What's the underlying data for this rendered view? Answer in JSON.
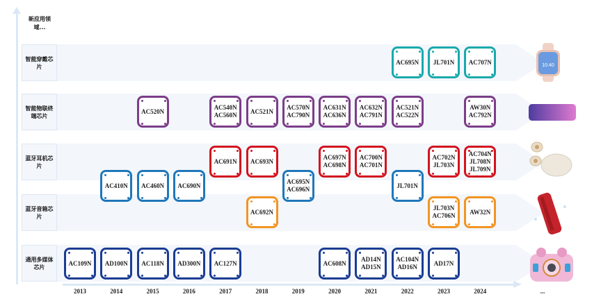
{
  "new_field_label": "新应用领域...",
  "rows": [
    {
      "id": "wearable",
      "label": "智能穿戴芯片"
    },
    {
      "id": "iot",
      "label": "智能物联终端芯片"
    },
    {
      "id": "earphone",
      "label": "蓝牙耳机芯片"
    },
    {
      "id": "speaker",
      "label": "蓝牙音箱芯片"
    },
    {
      "id": "multimedia",
      "label": "通用多媒体芯片"
    }
  ],
  "years": [
    "2013",
    "2014",
    "2015",
    "2016",
    "2017",
    "2018",
    "2019",
    "2020",
    "2021",
    "2022",
    "2023",
    "2024"
  ],
  "years_more": "...",
  "colors": {
    "wearable": "#19a9ad",
    "iot": "#7b3d88",
    "earphone": "#d4121e",
    "both": "#1f77ba",
    "speaker": "#f29422",
    "multimedia": "#1b3c93"
  },
  "chips": [
    {
      "row": "wearable",
      "year": "2022",
      "lines": [
        "AC695N"
      ]
    },
    {
      "row": "wearable",
      "year": "2023",
      "lines": [
        "JL701N"
      ]
    },
    {
      "row": "wearable",
      "year": "2024",
      "lines": [
        "AC707N"
      ]
    },
    {
      "row": "iot",
      "year": "2015",
      "lines": [
        "AC520N"
      ]
    },
    {
      "row": "iot",
      "year": "2017",
      "lines": [
        "AC540N",
        "AC560N"
      ]
    },
    {
      "row": "iot",
      "year": "2018",
      "lines": [
        "AC521N"
      ]
    },
    {
      "row": "iot",
      "year": "2019",
      "lines": [
        "AC570N",
        "AC790N"
      ]
    },
    {
      "row": "iot",
      "year": "2020",
      "lines": [
        "AC631N",
        "AC636N"
      ]
    },
    {
      "row": "iot",
      "year": "2021",
      "lines": [
        "AC632N",
        "AC791N"
      ]
    },
    {
      "row": "iot",
      "year": "2022",
      "lines": [
        "AC521N",
        "AC522N"
      ]
    },
    {
      "row": "iot",
      "year": "2024",
      "lines": [
        "AW30N",
        "AC792N"
      ]
    },
    {
      "row": "earphone",
      "year": "2017",
      "lines": [
        "AC691N"
      ]
    },
    {
      "row": "earphone",
      "year": "2018",
      "lines": [
        "AC693N"
      ]
    },
    {
      "row": "earphone",
      "year": "2020",
      "lines": [
        "AC697N",
        "AC698N"
      ]
    },
    {
      "row": "earphone",
      "year": "2021",
      "lines": [
        "AC700N",
        "AC701N"
      ]
    },
    {
      "row": "earphone",
      "year": "2023",
      "lines": [
        "AC702N",
        "JL703N"
      ]
    },
    {
      "row": "earphone",
      "year": "2024",
      "lines": [
        "AC704N",
        "JL708N",
        "JL709N"
      ]
    },
    {
      "row": "both",
      "year": "2014",
      "lines": [
        "AC410N"
      ]
    },
    {
      "row": "both",
      "year": "2015",
      "lines": [
        "AC460N"
      ]
    },
    {
      "row": "both",
      "year": "2016",
      "lines": [
        "AC690N"
      ]
    },
    {
      "row": "both",
      "year": "2019",
      "lines": [
        "AC695N",
        "AC696N"
      ]
    },
    {
      "row": "both",
      "year": "2022",
      "lines": [
        "JL701N"
      ]
    },
    {
      "row": "speaker",
      "year": "2018",
      "lines": [
        "AC692N"
      ]
    },
    {
      "row": "speaker",
      "year": "2023",
      "lines": [
        "JL703N",
        "AC706N"
      ]
    },
    {
      "row": "speaker",
      "year": "2024",
      "lines": [
        "AW32N"
      ]
    },
    {
      "row": "multimedia",
      "year": "2013",
      "lines": [
        "AC109N"
      ]
    },
    {
      "row": "multimedia",
      "year": "2014",
      "lines": [
        "AD100N"
      ]
    },
    {
      "row": "multimedia",
      "year": "2015",
      "lines": [
        "AC118N"
      ]
    },
    {
      "row": "multimedia",
      "year": "2016",
      "lines": [
        "AD300N"
      ]
    },
    {
      "row": "multimedia",
      "year": "2017",
      "lines": [
        "AC127N"
      ]
    },
    {
      "row": "multimedia",
      "year": "2020",
      "lines": [
        "AC608N"
      ]
    },
    {
      "row": "multimedia",
      "year": "2021",
      "lines": [
        "AD14N",
        "AD15N"
      ]
    },
    {
      "row": "multimedia",
      "year": "2022",
      "lines": [
        "AC104N",
        "AD16N"
      ]
    },
    {
      "row": "multimedia",
      "year": "2023",
      "lines": [
        "AD17N"
      ]
    }
  ],
  "products": [
    {
      "row": "wearable",
      "icon": "smartwatch-icon",
      "screen_text": "10:40"
    },
    {
      "row": "iot",
      "icon": "smartphone-icon"
    },
    {
      "row": "earphone",
      "icon": "earbuds-icon"
    },
    {
      "row": "speaker",
      "icon": "speaker-icon"
    },
    {
      "row": "multimedia",
      "icon": "kids-camera-icon"
    }
  ]
}
